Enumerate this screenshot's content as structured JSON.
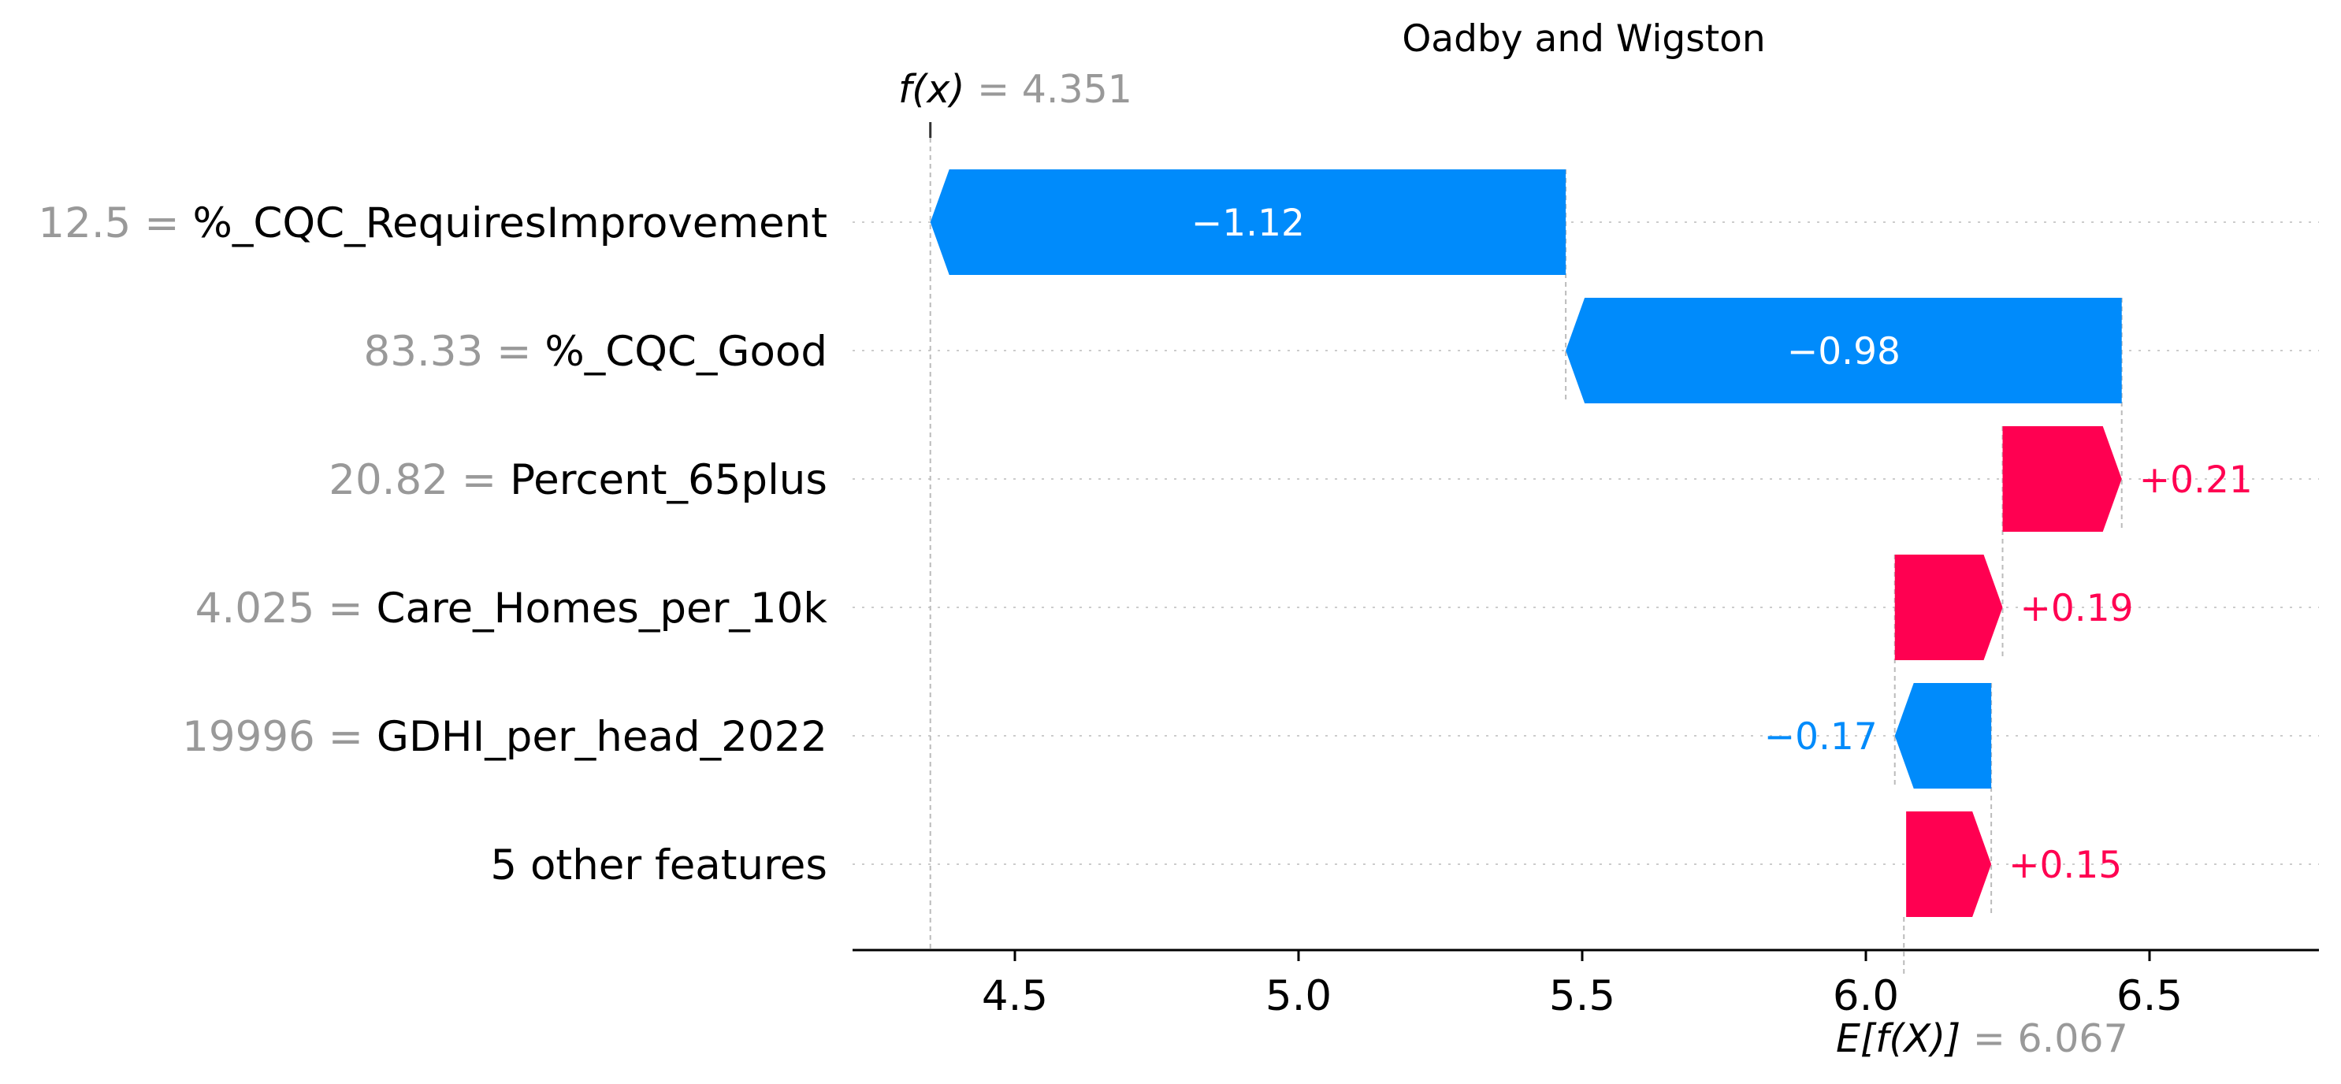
{
  "chart_data": {
    "type": "bar",
    "subtype": "waterfall",
    "title": "Oadby and Wigston",
    "fx": {
      "symbol": "f(x)",
      "value": "4.351",
      "value_num": 4.351
    },
    "base": {
      "symbol": "E[f(X)]",
      "value": "6.067",
      "value_num": 6.067
    },
    "features": [
      {
        "value": "12.5",
        "name": "%_CQC_RequiresImprovement",
        "contribution": -1.12,
        "label": "−1.12"
      },
      {
        "value": "83.33",
        "name": "%_CQC_Good",
        "contribution": -0.98,
        "label": "−0.98"
      },
      {
        "value": "20.82",
        "name": "Percent_65plus",
        "contribution": 0.21,
        "label": "+0.21"
      },
      {
        "value": "4.025",
        "name": "Care_Homes_per_10k",
        "contribution": 0.19,
        "label": "+0.19"
      },
      {
        "value": "19996",
        "name": "GDHI_per_head_2022",
        "contribution": -0.17,
        "label": "−0.17"
      },
      {
        "value": "",
        "name": "5 other features",
        "contribution": 0.15,
        "label": "+0.15"
      }
    ],
    "x_ticks": [
      {
        "value": 4.5,
        "label": "4.5"
      },
      {
        "value": 5.0,
        "label": "5.0"
      },
      {
        "value": 5.5,
        "label": "5.5"
      },
      {
        "value": 6.0,
        "label": "6.0"
      },
      {
        "value": 6.5,
        "label": "6.5"
      }
    ],
    "xlim": [
      4.2,
      6.8
    ],
    "colors": {
      "positive": "#ff0051",
      "negative": "#008bfb",
      "muted": "#999999",
      "grid": "#cccccc"
    },
    "grid": true
  }
}
